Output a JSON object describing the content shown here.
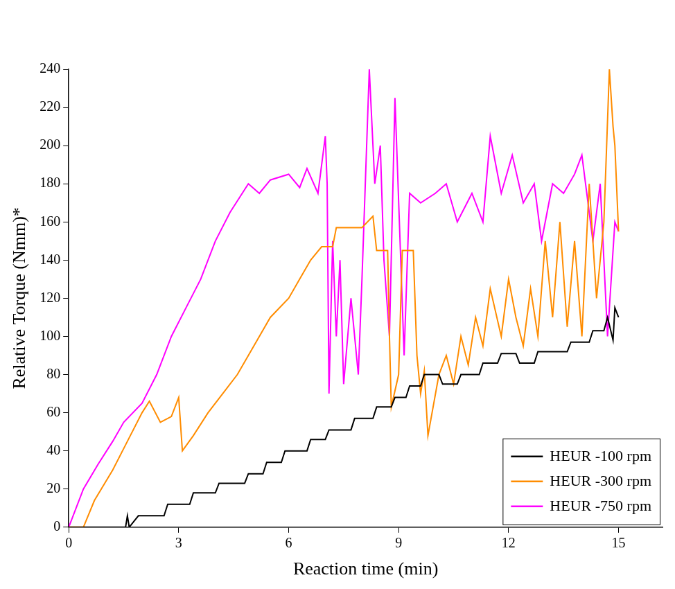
{
  "chart_data": {
    "type": "line",
    "x_label": "Reaction time (min)",
    "y_label": "Relative Torque (Nmm)*",
    "xlim": [
      0,
      16.2
    ],
    "xticks": [
      0,
      3,
      6,
      9,
      12,
      15
    ],
    "ylim": [
      0,
      240
    ],
    "yticks": [
      0,
      20,
      40,
      60,
      80,
      100,
      120,
      140,
      160,
      180,
      200,
      220,
      240
    ],
    "grid": false,
    "legend": "bottom right",
    "series": [
      {
        "name": "HEUR -100 rpm",
        "color": "#000000",
        "marker": "none",
        "line_style": "solid",
        "x": [
          0,
          1.55,
          1.6,
          1.65,
          1.9,
          2.6,
          2.7,
          3.3,
          3.4,
          4.0,
          4.1,
          4.8,
          4.9,
          5.3,
          5.4,
          5.8,
          5.9,
          6.5,
          6.6,
          7.0,
          7.1,
          7.7,
          7.8,
          8.3,
          8.4,
          8.8,
          8.9,
          9.2,
          9.3,
          9.6,
          9.7,
          10.1,
          10.2,
          10.6,
          10.7,
          11.2,
          11.3,
          11.7,
          11.8,
          12.2,
          12.3,
          12.7,
          12.8,
          13.6,
          13.7,
          14.2,
          14.3,
          14.6,
          14.7,
          14.85,
          14.9,
          15.0
        ],
        "values": [
          0,
          0,
          6,
          0,
          6,
          6,
          12,
          12,
          18,
          18,
          23,
          23,
          28,
          28,
          34,
          34,
          40,
          40,
          46,
          46,
          51,
          51,
          57,
          57,
          63,
          63,
          68,
          68,
          74,
          74,
          80,
          80,
          75,
          75,
          80,
          80,
          86,
          86,
          91,
          91,
          86,
          86,
          92,
          92,
          97,
          97,
          103,
          103,
          110,
          98,
          115,
          110
        ]
      },
      {
        "name": "HEUR -300 rpm",
        "color": "#ff8c00",
        "marker": "none",
        "line_style": "solid",
        "x": [
          0,
          0.4,
          0.7,
          1.2,
          1.6,
          2.0,
          2.2,
          2.5,
          2.8,
          3.0,
          3.1,
          3.4,
          3.8,
          4.2,
          4.6,
          4.9,
          5.2,
          5.5,
          6.0,
          6.3,
          6.6,
          6.9,
          7.2,
          7.3,
          8.0,
          8.3,
          8.4,
          8.7,
          8.75,
          8.8,
          9.0,
          9.1,
          9.4,
          9.5,
          9.6,
          9.7,
          9.8,
          10.1,
          10.3,
          10.5,
          10.7,
          10.9,
          11.1,
          11.3,
          11.5,
          11.8,
          12.0,
          12.2,
          12.4,
          12.6,
          12.8,
          13.0,
          13.2,
          13.4,
          13.6,
          13.8,
          14.0,
          14.2,
          14.4,
          14.6,
          14.75,
          14.85,
          14.9,
          15.0
        ],
        "values": [
          0,
          0,
          14,
          30,
          45,
          60,
          66,
          55,
          58,
          68,
          40,
          48,
          60,
          70,
          80,
          90,
          100,
          110,
          120,
          130,
          140,
          147,
          147,
          157,
          157,
          163,
          145,
          145,
          100,
          63,
          80,
          145,
          145,
          90,
          70,
          82,
          48,
          80,
          90,
          75,
          100,
          85,
          110,
          95,
          125,
          100,
          130,
          110,
          95,
          125,
          100,
          150,
          110,
          160,
          105,
          150,
          100,
          180,
          120,
          160,
          240,
          210,
          200,
          155
        ]
      },
      {
        "name": "HEUR -750 rpm",
        "color": "#ff00ff",
        "marker": "none",
        "line_style": "solid",
        "x": [
          0,
          0.4,
          0.8,
          1.2,
          1.5,
          2.0,
          2.4,
          2.8,
          3.2,
          3.6,
          4.0,
          4.4,
          4.9,
          5.2,
          5.5,
          6.0,
          6.3,
          6.5,
          6.8,
          7.0,
          7.05,
          7.1,
          7.2,
          7.3,
          7.4,
          7.5,
          7.7,
          7.9,
          8.0,
          8.2,
          8.35,
          8.5,
          8.6,
          8.75,
          8.9,
          9.15,
          9.3,
          9.6,
          10.0,
          10.3,
          10.6,
          11.0,
          11.3,
          11.5,
          11.8,
          12.1,
          12.4,
          12.7,
          12.9,
          13.2,
          13.5,
          13.8,
          14.0,
          14.3,
          14.5,
          14.7,
          14.9,
          15.0
        ],
        "values": [
          0,
          20,
          33,
          45,
          55,
          65,
          80,
          100,
          115,
          130,
          150,
          165,
          180,
          175,
          182,
          185,
          178,
          188,
          175,
          205,
          180,
          70,
          150,
          100,
          140,
          75,
          120,
          80,
          130,
          240,
          180,
          200,
          140,
          100,
          225,
          90,
          175,
          170,
          175,
          180,
          160,
          175,
          160,
          205,
          175,
          195,
          170,
          180,
          150,
          180,
          175,
          185,
          195,
          150,
          180,
          100,
          160,
          155
        ]
      }
    ]
  }
}
